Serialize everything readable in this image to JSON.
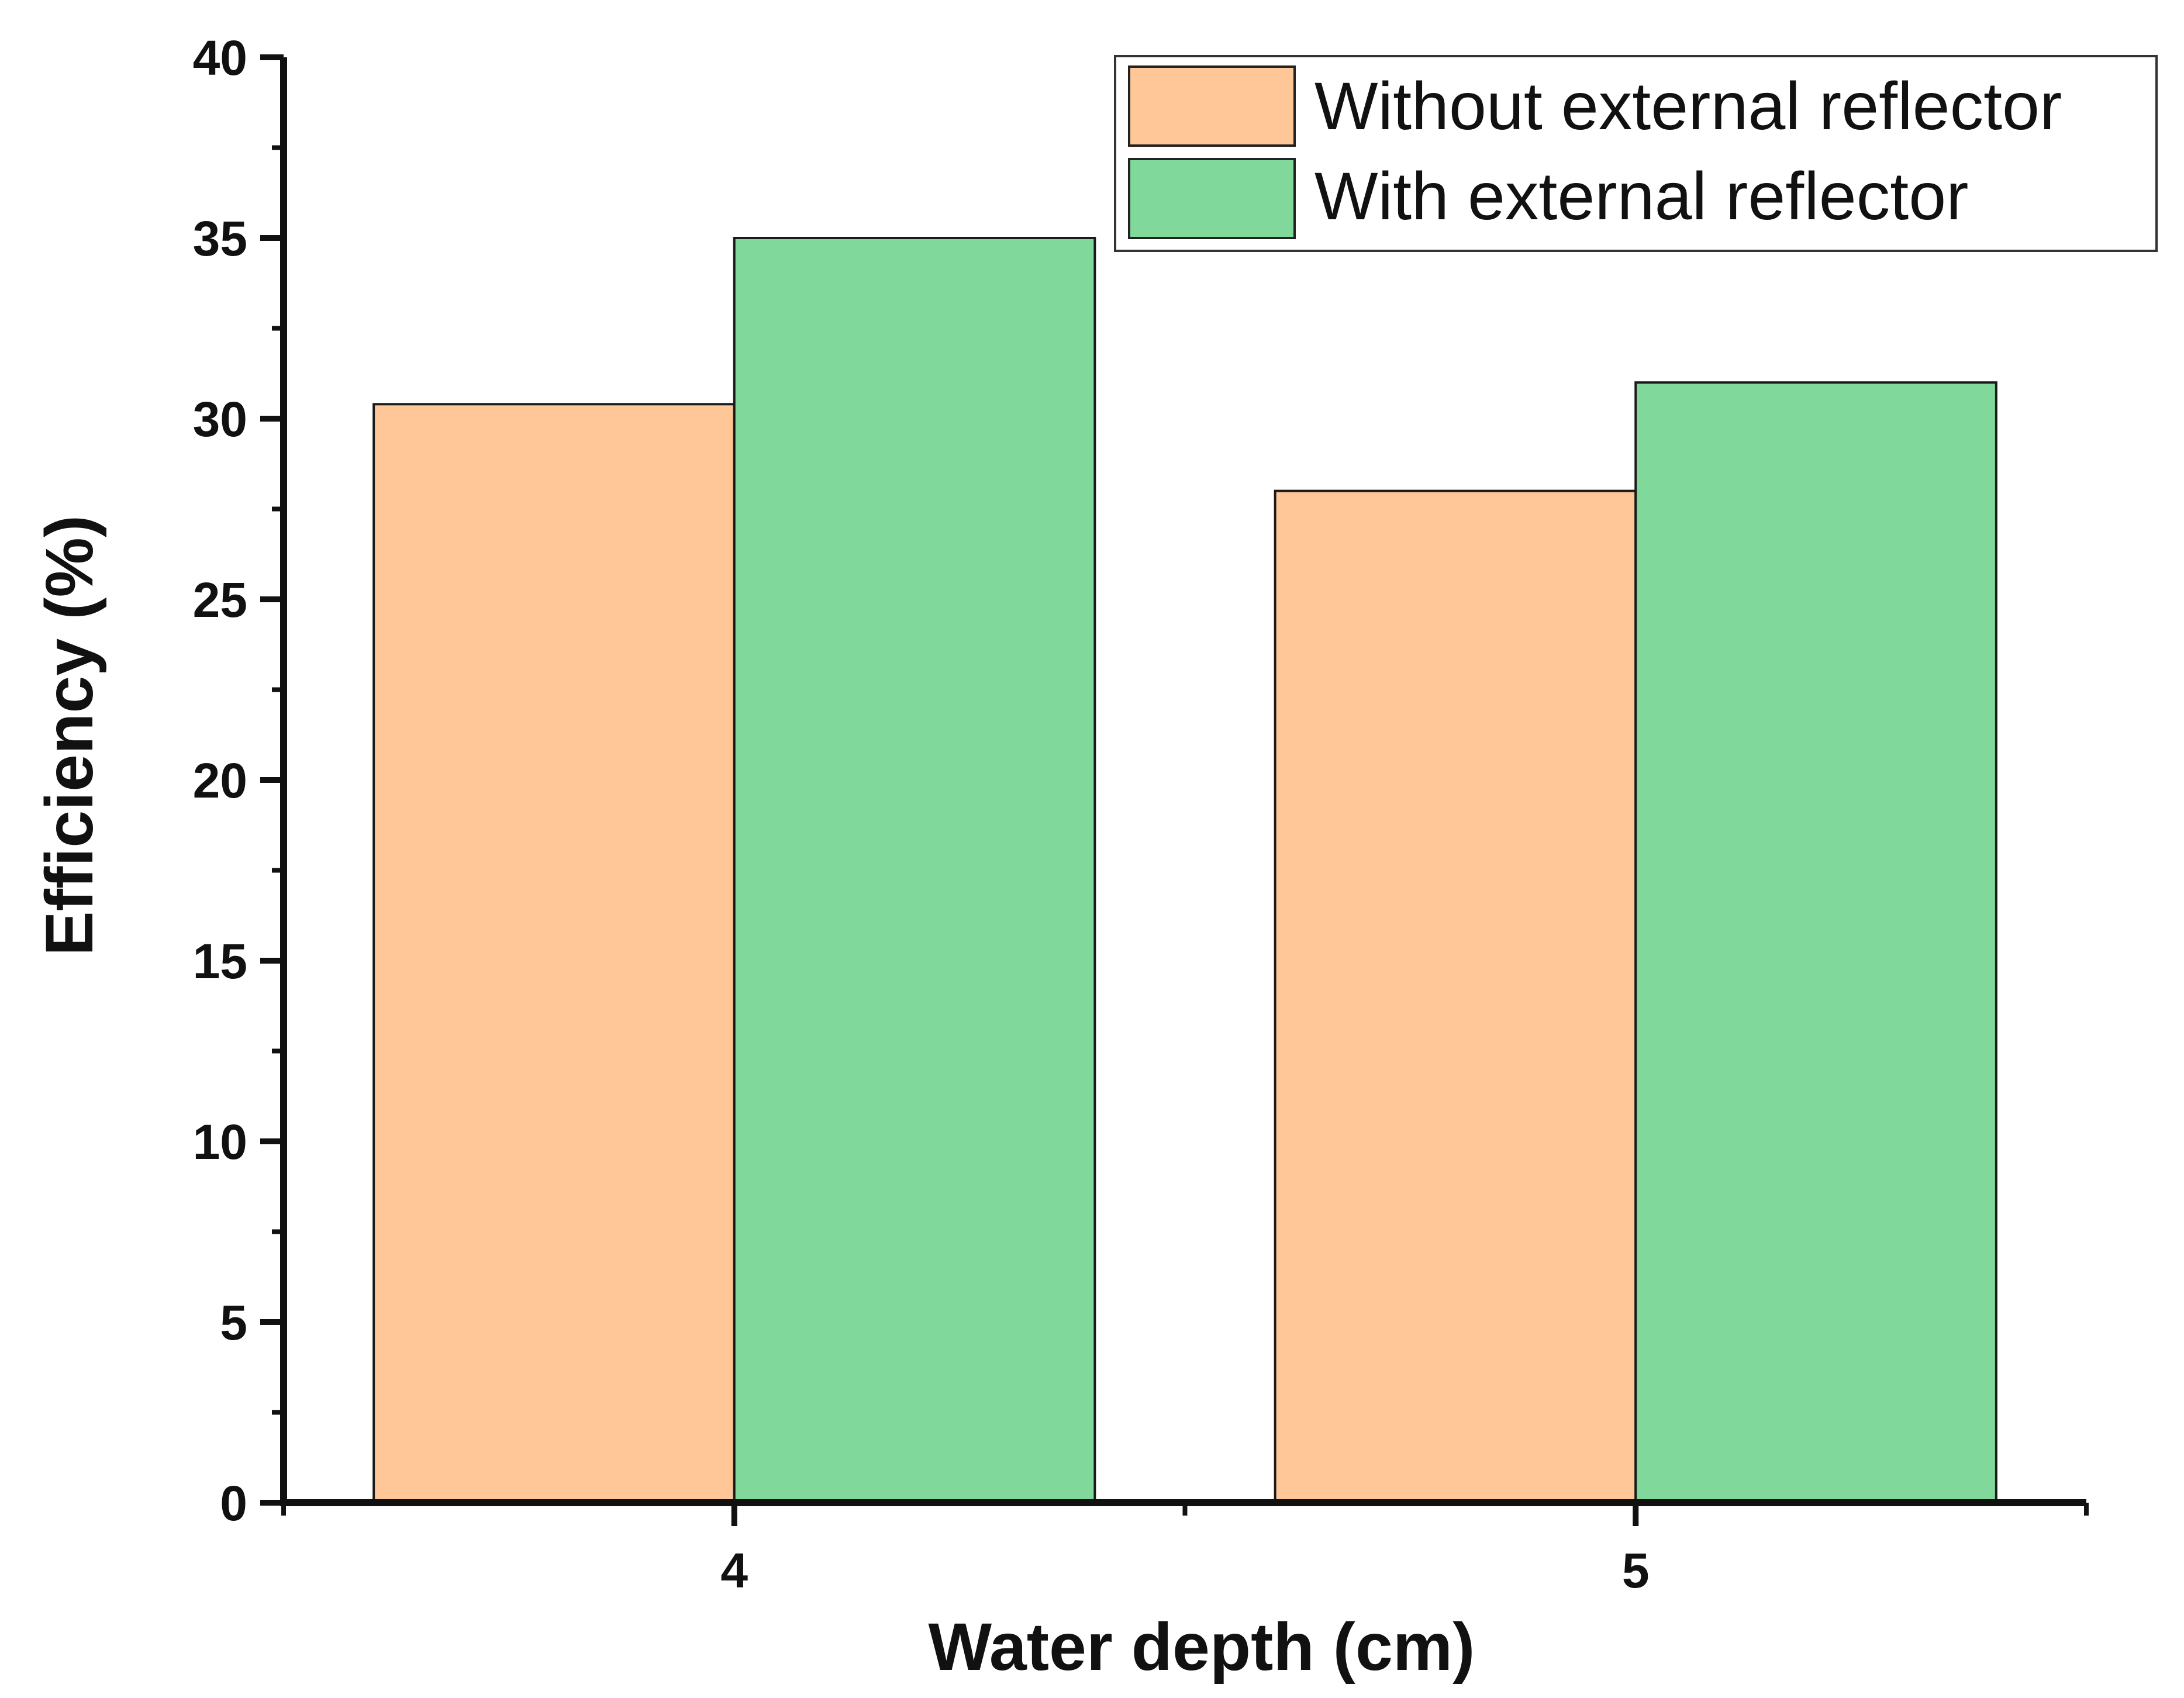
{
  "chart_data": {
    "type": "bar",
    "title": "",
    "xlabel": "Water depth (cm)",
    "ylabel": "Efficiency (%)",
    "categories": [
      "4",
      "5"
    ],
    "series": [
      {
        "name": "Without external reflector",
        "values": [
          30.4,
          28.0
        ],
        "color": "#FFC697"
      },
      {
        "name": "With external reflector",
        "values": [
          35.0,
          31.0
        ],
        "color": "#80D89A"
      }
    ],
    "ylim": [
      0,
      40
    ],
    "yticks": [
      0,
      5,
      10,
      15,
      20,
      25,
      30,
      35,
      40
    ],
    "grid": false,
    "legend_position": "top-right"
  }
}
